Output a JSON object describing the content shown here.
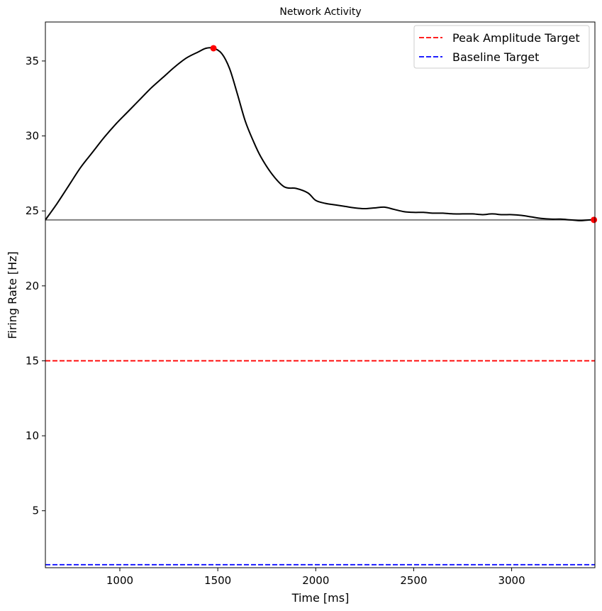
{
  "chart_data": {
    "type": "line",
    "title": "Network Activity",
    "xlabel": "Time [ms]",
    "ylabel": "Firing Rate [Hz]",
    "xlim": [
      620,
      3425
    ],
    "ylim": [
      1.2,
      37.6
    ],
    "xticks": [
      1000,
      1500,
      2000,
      2500,
      3000
    ],
    "yticks": [
      5,
      10,
      15,
      20,
      25,
      30,
      35
    ],
    "grid": false,
    "legend_position": "top-right",
    "colors": {
      "activity": "#000000",
      "baseline_level": "#808080",
      "markers": "#ff0000",
      "peak_target": "#ff0000",
      "baseline_target": "#0000ff"
    },
    "series": [
      {
        "name": "Firing Rate",
        "x": [
          620,
          680,
          740,
          800,
          860,
          920,
          980,
          1040,
          1100,
          1160,
          1220,
          1280,
          1340,
          1400,
          1440,
          1478,
          1520,
          1560,
          1600,
          1640,
          1680,
          1720,
          1780,
          1840,
          1900,
          1960,
          2000,
          2050,
          2100,
          2150,
          2200,
          2250,
          2300,
          2350,
          2400,
          2450,
          2500,
          2550,
          2600,
          2650,
          2700,
          2750,
          2800,
          2850,
          2900,
          2950,
          3000,
          3050,
          3100,
          3150,
          3200,
          3250,
          3300,
          3350,
          3400,
          3420
        ],
        "y": [
          24.4,
          25.5,
          26.7,
          27.9,
          28.9,
          29.9,
          30.8,
          31.6,
          32.4,
          33.2,
          33.9,
          34.6,
          35.2,
          35.6,
          35.85,
          35.85,
          35.5,
          34.5,
          32.8,
          31.0,
          29.7,
          28.6,
          27.4,
          26.6,
          26.5,
          26.2,
          25.7,
          25.5,
          25.4,
          25.3,
          25.2,
          25.15,
          25.2,
          25.25,
          25.1,
          24.95,
          24.9,
          24.9,
          24.85,
          24.85,
          24.8,
          24.8,
          24.8,
          24.75,
          24.8,
          24.75,
          24.75,
          24.7,
          24.6,
          24.5,
          24.45,
          24.45,
          24.4,
          24.35,
          24.4,
          24.4
        ]
      }
    ],
    "baseline_level": 24.4,
    "markers": [
      {
        "name": "peak",
        "x": 1478,
        "y": 35.85
      },
      {
        "name": "end",
        "x": 3420,
        "y": 24.4
      }
    ],
    "reference_lines": [
      {
        "label": "Peak Amplitude Target",
        "y": 15.0,
        "color": "#ff0000",
        "style": "dashed"
      },
      {
        "label": "Baseline Target",
        "y": 1.4,
        "color": "#0000ff",
        "style": "dashed"
      }
    ]
  }
}
